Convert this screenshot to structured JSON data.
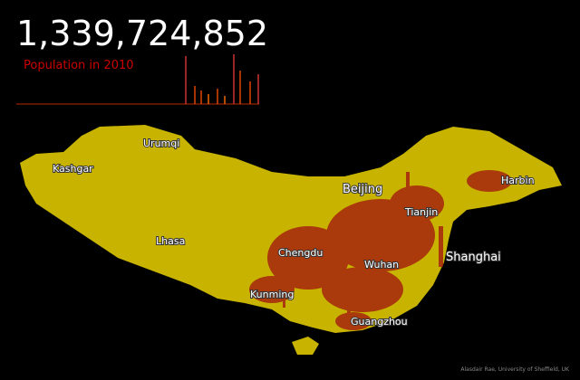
{
  "header": {
    "total": "1,339,724,852",
    "subtitle": "Population in 2010"
  },
  "cities": [
    "Urumqi",
    "Kashgar",
    "Beijing",
    "Harbin",
    "Tianjin",
    "Lhasa",
    "Chengdu",
    "Wuhan",
    "Shanghai",
    "Kunming",
    "Guangzhou"
  ],
  "credit": "Alasdair Rae, University of Sheffield, UK"
}
